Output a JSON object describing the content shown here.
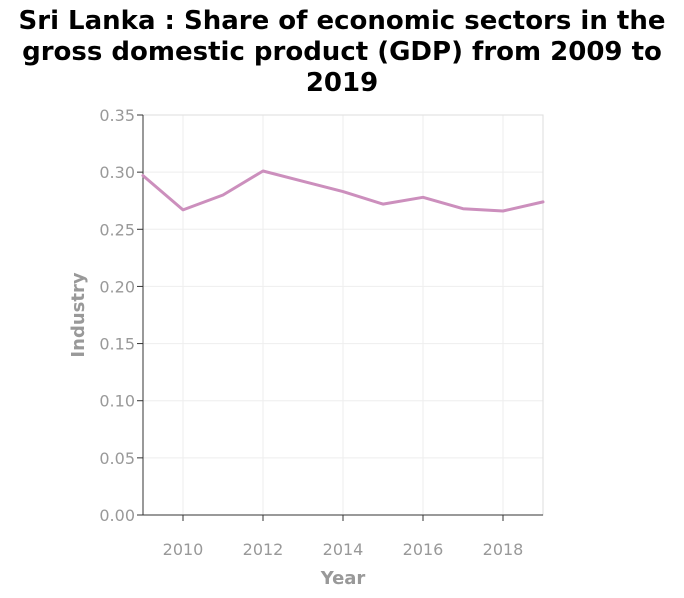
{
  "chart_data": {
    "type": "line",
    "title": "Sri Lanka : Share of economic sectors in the gross domestic product (GDP) from 2009 to 2019",
    "xlabel": "Year",
    "ylabel": "Industry",
    "x": [
      2009,
      2010,
      2011,
      2012,
      2013,
      2014,
      2015,
      2016,
      2017,
      2018,
      2019
    ],
    "series": [
      {
        "name": "",
        "values": [
          0.297,
          0.267,
          0.28,
          0.301,
          0.292,
          0.283,
          0.272,
          0.278,
          0.268,
          0.266,
          0.274
        ]
      }
    ],
    "xlim": [
      2009,
      2019
    ],
    "ylim": [
      0,
      0.35
    ],
    "xticks": [
      "2010",
      "2012",
      "2014",
      "2016",
      "2018"
    ],
    "xtick_values": [
      2010,
      2012,
      2014,
      2016,
      2018
    ],
    "yticks": [
      "0.00",
      "0.05",
      "0.10",
      "0.15",
      "0.20",
      "0.25",
      "0.30",
      "0.35"
    ],
    "ytick_values": [
      0,
      0.05,
      0.1,
      0.15,
      0.2,
      0.25,
      0.3,
      0.35
    ],
    "grid": true,
    "line_color": "#cc8fbd",
    "grid_color": "#eeeeee",
    "axis_color": "#333333"
  }
}
